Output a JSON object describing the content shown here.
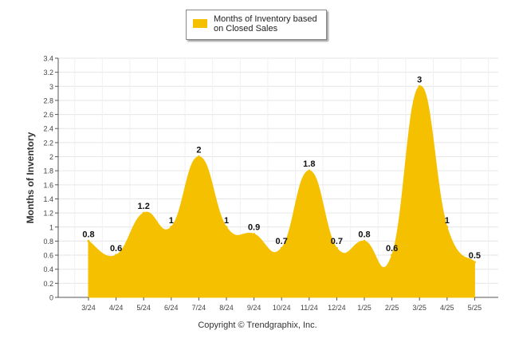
{
  "colors": {
    "fill": "#F5C000",
    "grid": "#e6e6e6",
    "axis": "#555555"
  },
  "legend": {
    "label": "Months of Inventory based on Closed Sales"
  },
  "footer": {
    "copyright": "Copyright © Trendgraphix, Inc."
  },
  "chart_data": {
    "type": "area",
    "ylabel": "Months of Inventory",
    "xlabel": "",
    "ylim": [
      0,
      3.4
    ],
    "y_ticks": [
      "0",
      "0.2",
      "0.4",
      "0.6",
      "0.8",
      "1",
      "1.2",
      "1.4",
      "1.6",
      "1.8",
      "2",
      "2.2",
      "2.4",
      "2.6",
      "2.8",
      "3",
      "3.2",
      "3.4"
    ],
    "categories": [
      "3/24",
      "4/24",
      "5/24",
      "6/24",
      "7/24",
      "8/24",
      "9/24",
      "10/24",
      "11/24",
      "12/24",
      "1/25",
      "2/25",
      "3/25",
      "4/25",
      "5/25"
    ],
    "series": [
      {
        "name": "Months of Inventory based on Closed Sales",
        "values": [
          0.8,
          0.6,
          1.2,
          1,
          2,
          1,
          0.9,
          0.7,
          1.8,
          0.7,
          0.8,
          0.6,
          3,
          1,
          0.5
        ],
        "labels": [
          "0.8",
          "0.6",
          "1.2",
          "1",
          "2",
          "1",
          "0.9",
          "0.7",
          "1.8",
          "0.7",
          "0.8",
          "0.6",
          "3",
          "1",
          "0.5"
        ]
      }
    ],
    "grid": true,
    "legend_position": "top-center"
  }
}
